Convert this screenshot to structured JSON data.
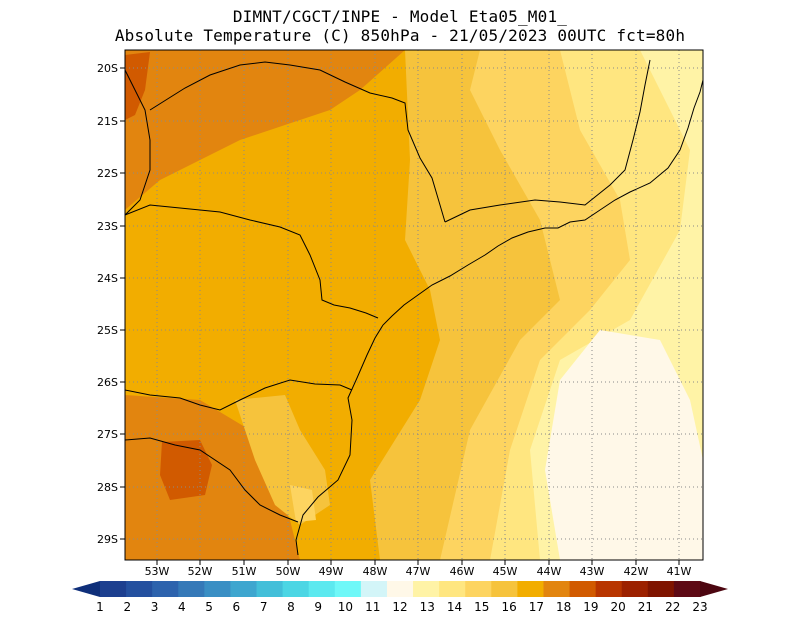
{
  "title": {
    "line1": "DIMNT/CGCT/INPE -  Model Eta05_M01_",
    "line2": "Absolute Temperature (C) 850hPa -  21/05/2023 00UTC fct=80h"
  },
  "map": {
    "lat_labels": [
      "20S",
      "21S",
      "22S",
      "23S",
      "24S",
      "25S",
      "26S",
      "27S",
      "28S",
      "29S"
    ],
    "lon_labels": [
      "53W",
      "52W",
      "51W",
      "50W",
      "49W",
      "48W",
      "47W",
      "46W",
      "45W",
      "44W",
      "43W",
      "42W",
      "41W"
    ]
  },
  "colorbar": {
    "labels": [
      "1",
      "2",
      "3",
      "4",
      "5",
      "6",
      "7",
      "8",
      "9",
      "10",
      "11",
      "12",
      "13",
      "14",
      "15",
      "16",
      "17",
      "18",
      "19",
      "20",
      "21",
      "22",
      "23"
    ],
    "colors": [
      "#1d3f8f",
      "#24509f",
      "#2d63ad",
      "#3579b8",
      "#3a8fc4",
      "#3ea6cf",
      "#43bfd9",
      "#4cd6e4",
      "#5ce9ef",
      "#6ff8f8",
      "#d3f5f8",
      "#fff8e8",
      "#fff3a6",
      "#ffe680",
      "#fdd460",
      "#f6c33c",
      "#f2ad00",
      "#e2850f",
      "#d15a00",
      "#b83500",
      "#9c2100",
      "#7f1400",
      "#5e0a15"
    ],
    "left_arrow_color": "#0f2f7a",
    "right_arrow_color": "#4c0610"
  }
}
